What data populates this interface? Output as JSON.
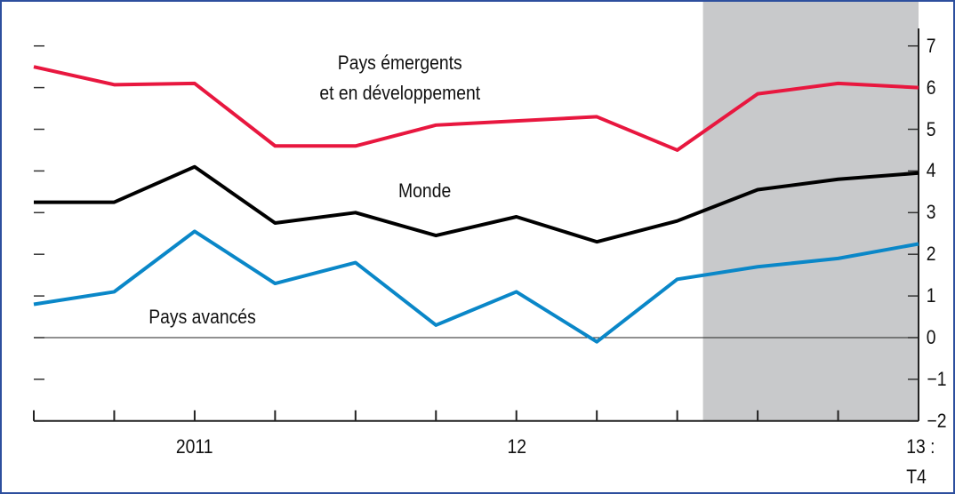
{
  "chart_data": {
    "type": "line",
    "categories": [
      null,
      null,
      "2011",
      null,
      null,
      null,
      "12",
      null,
      null,
      null,
      null,
      "13 :\nT4"
    ],
    "series": [
      {
        "name": "Pays émergents\net en développement",
        "color": "#e8173f",
        "values": [
          6.5,
          6.07,
          6.1,
          4.6,
          4.6,
          5.1,
          5.2,
          5.3,
          4.5,
          5.85,
          6.1,
          6.0
        ]
      },
      {
        "name": "Monde",
        "color": "#000000",
        "values": [
          3.25,
          3.25,
          4.1,
          2.75,
          3.0,
          2.45,
          2.9,
          2.3,
          2.8,
          3.55,
          3.8,
          3.95
        ]
      },
      {
        "name": "Pays avancés",
        "color": "#0a87c8",
        "values": [
          0.8,
          1.1,
          2.55,
          1.3,
          1.8,
          0.3,
          1.1,
          -0.1,
          1.4,
          1.7,
          1.9,
          2.25
        ]
      }
    ],
    "ylim": [
      -2,
      7.3
    ],
    "yticks": [
      {
        "value": -2,
        "label": "−2"
      },
      {
        "value": -1,
        "label": "−1"
      },
      0,
      1,
      2,
      3,
      4,
      5,
      6,
      7
    ],
    "shaded_x": [
      8.32,
      11
    ],
    "shade_color": "#c8c9cb"
  }
}
